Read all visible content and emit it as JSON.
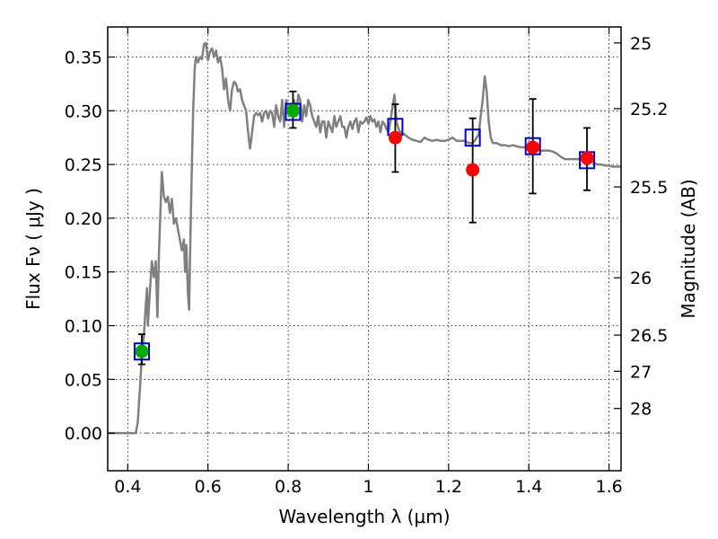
{
  "chart_data": {
    "type": "scatter",
    "title": "",
    "xlabel": "Wavelength  λ (μm)",
    "ylabel": "Flux  Fν  ( μJy )",
    "y2label": "Magnitude (AB)",
    "xlim": [
      0.35,
      1.63
    ],
    "ylim": [
      -0.035,
      0.378
    ],
    "grid": true,
    "x_ticks": [
      {
        "value": 0.4,
        "label": "0.4"
      },
      {
        "value": 0.6,
        "label": "0.6"
      },
      {
        "value": 0.8,
        "label": "0.8"
      },
      {
        "value": 1.0,
        "label": "1"
      },
      {
        "value": 1.2,
        "label": "1.2"
      },
      {
        "value": 1.4,
        "label": "1.4"
      },
      {
        "value": 1.6,
        "label": "1.6"
      }
    ],
    "y_ticks": [
      {
        "value": 0.0,
        "label": "0.00"
      },
      {
        "value": 0.05,
        "label": "0.05"
      },
      {
        "value": 0.1,
        "label": "0.10"
      },
      {
        "value": 0.15,
        "label": "0.15"
      },
      {
        "value": 0.2,
        "label": "0.20"
      },
      {
        "value": 0.25,
        "label": "0.25"
      },
      {
        "value": 0.3,
        "label": "0.30"
      },
      {
        "value": 0.35,
        "label": "0.35"
      }
    ],
    "y2_ticks": [
      {
        "value": 25.0,
        "label": "25"
      },
      {
        "value": 25.2,
        "label": "25.2"
      },
      {
        "value": 25.5,
        "label": "25.5"
      },
      {
        "value": 26.0,
        "label": "26"
      },
      {
        "value": 26.5,
        "label": "26.5"
      },
      {
        "value": 27.0,
        "label": "27"
      },
      {
        "value": 28.0,
        "label": "28"
      }
    ],
    "series": [
      {
        "kind": "line",
        "color": "#808080",
        "points": [
          [
            0.35,
            0.0
          ],
          [
            0.41,
            0.0
          ],
          [
            0.42,
            0.0
          ],
          [
            0.425,
            0.01
          ],
          [
            0.43,
            0.04
          ],
          [
            0.435,
            0.07
          ],
          [
            0.44,
            0.09
          ],
          [
            0.445,
            0.12
          ],
          [
            0.448,
            0.135
          ],
          [
            0.45,
            0.1
          ],
          [
            0.455,
            0.13
          ],
          [
            0.46,
            0.16
          ],
          [
            0.465,
            0.145
          ],
          [
            0.47,
            0.16
          ],
          [
            0.474,
            0.108
          ],
          [
            0.478,
            0.17
          ],
          [
            0.485,
            0.243
          ],
          [
            0.49,
            0.22
          ],
          [
            0.495,
            0.215
          ],
          [
            0.5,
            0.22
          ],
          [
            0.505,
            0.205
          ],
          [
            0.51,
            0.218
          ],
          [
            0.515,
            0.195
          ],
          [
            0.52,
            0.2
          ],
          [
            0.525,
            0.19
          ],
          [
            0.53,
            0.18
          ],
          [
            0.535,
            0.17
          ],
          [
            0.54,
            0.18
          ],
          [
            0.543,
            0.15
          ],
          [
            0.546,
            0.175
          ],
          [
            0.55,
            0.13
          ],
          [
            0.553,
            0.115
          ],
          [
            0.556,
            0.18
          ],
          [
            0.56,
            0.25
          ],
          [
            0.563,
            0.3
          ],
          [
            0.567,
            0.34
          ],
          [
            0.57,
            0.35
          ],
          [
            0.575,
            0.345
          ],
          [
            0.58,
            0.35
          ],
          [
            0.585,
            0.348
          ],
          [
            0.59,
            0.362
          ],
          [
            0.595,
            0.363
          ],
          [
            0.6,
            0.347
          ],
          [
            0.605,
            0.355
          ],
          [
            0.61,
            0.358
          ],
          [
            0.615,
            0.35
          ],
          [
            0.62,
            0.356
          ],
          [
            0.625,
            0.345
          ],
          [
            0.63,
            0.35
          ],
          [
            0.635,
            0.34
          ],
          [
            0.64,
            0.32
          ],
          [
            0.645,
            0.33
          ],
          [
            0.65,
            0.31
          ],
          [
            0.655,
            0.3
          ],
          [
            0.66,
            0.32
          ],
          [
            0.665,
            0.327
          ],
          [
            0.67,
            0.325
          ],
          [
            0.675,
            0.318
          ],
          [
            0.68,
            0.32
          ],
          [
            0.685,
            0.31
          ],
          [
            0.69,
            0.305
          ],
          [
            0.695,
            0.3
          ],
          [
            0.7,
            0.28
          ],
          [
            0.705,
            0.265
          ],
          [
            0.71,
            0.28
          ],
          [
            0.715,
            0.295
          ],
          [
            0.72,
            0.298
          ],
          [
            0.725,
            0.296
          ],
          [
            0.73,
            0.298
          ],
          [
            0.735,
            0.29
          ],
          [
            0.74,
            0.298
          ],
          [
            0.745,
            0.3
          ],
          [
            0.75,
            0.293
          ],
          [
            0.755,
            0.3
          ],
          [
            0.76,
            0.298
          ],
          [
            0.765,
            0.285
          ],
          [
            0.77,
            0.305
          ],
          [
            0.775,
            0.295
          ],
          [
            0.78,
            0.29
          ],
          [
            0.785,
            0.31
          ],
          [
            0.79,
            0.285
          ],
          [
            0.795,
            0.31
          ],
          [
            0.8,
            0.3
          ],
          [
            0.805,
            0.305
          ],
          [
            0.81,
            0.3
          ],
          [
            0.815,
            0.31
          ],
          [
            0.82,
            0.295
          ],
          [
            0.825,
            0.315
          ],
          [
            0.83,
            0.31
          ],
          [
            0.835,
            0.29
          ],
          [
            0.84,
            0.305
          ],
          [
            0.845,
            0.295
          ],
          [
            0.85,
            0.31
          ],
          [
            0.855,
            0.305
          ],
          [
            0.86,
            0.295
          ],
          [
            0.865,
            0.29
          ],
          [
            0.87,
            0.285
          ],
          [
            0.875,
            0.295
          ],
          [
            0.88,
            0.28
          ],
          [
            0.885,
            0.29
          ],
          [
            0.89,
            0.29
          ],
          [
            0.895,
            0.275
          ],
          [
            0.9,
            0.29
          ],
          [
            0.905,
            0.285
          ],
          [
            0.91,
            0.28
          ],
          [
            0.915,
            0.295
          ],
          [
            0.92,
            0.285
          ],
          [
            0.925,
            0.29
          ],
          [
            0.93,
            0.295
          ],
          [
            0.935,
            0.285
          ],
          [
            0.94,
            0.285
          ],
          [
            0.945,
            0.275
          ],
          [
            0.95,
            0.285
          ],
          [
            0.955,
            0.29
          ],
          [
            0.96,
            0.283
          ],
          [
            0.965,
            0.29
          ],
          [
            0.97,
            0.293
          ],
          [
            0.975,
            0.28
          ],
          [
            0.98,
            0.29
          ],
          [
            0.985,
            0.288
          ],
          [
            0.99,
            0.29
          ],
          [
            0.995,
            0.294
          ],
          [
            1.0,
            0.288
          ],
          [
            1.005,
            0.295
          ],
          [
            1.01,
            0.29
          ],
          [
            1.015,
            0.292
          ],
          [
            1.02,
            0.285
          ],
          [
            1.025,
            0.29
          ],
          [
            1.03,
            0.28
          ],
          [
            1.035,
            0.29
          ],
          [
            1.04,
            0.288
          ],
          [
            1.045,
            0.283
          ],
          [
            1.05,
            0.28
          ],
          [
            1.055,
            0.29
          ],
          [
            1.06,
            0.303
          ],
          [
            1.065,
            0.315
          ],
          [
            1.07,
            0.29
          ],
          [
            1.075,
            0.283
          ],
          [
            1.08,
            0.28
          ],
          [
            1.09,
            0.278
          ],
          [
            1.1,
            0.275
          ],
          [
            1.11,
            0.273
          ],
          [
            1.12,
            0.272
          ],
          [
            1.13,
            0.271
          ],
          [
            1.14,
            0.275
          ],
          [
            1.15,
            0.273
          ],
          [
            1.16,
            0.272
          ],
          [
            1.17,
            0.273
          ],
          [
            1.18,
            0.272
          ],
          [
            1.19,
            0.272
          ],
          [
            1.2,
            0.273
          ],
          [
            1.21,
            0.275
          ],
          [
            1.22,
            0.272
          ],
          [
            1.23,
            0.272
          ],
          [
            1.24,
            0.272
          ],
          [
            1.25,
            0.27
          ],
          [
            1.26,
            0.27
          ],
          [
            1.265,
            0.272
          ],
          [
            1.27,
            0.275
          ],
          [
            1.275,
            0.278
          ],
          [
            1.28,
            0.295
          ],
          [
            1.285,
            0.31
          ],
          [
            1.29,
            0.332
          ],
          [
            1.295,
            0.318
          ],
          [
            1.3,
            0.29
          ],
          [
            1.305,
            0.275
          ],
          [
            1.31,
            0.27
          ],
          [
            1.32,
            0.27
          ],
          [
            1.33,
            0.268
          ],
          [
            1.34,
            0.268
          ],
          [
            1.35,
            0.267
          ],
          [
            1.36,
            0.268
          ],
          [
            1.37,
            0.267
          ],
          [
            1.38,
            0.266
          ],
          [
            1.39,
            0.266
          ],
          [
            1.4,
            0.265
          ],
          [
            1.41,
            0.265
          ],
          [
            1.42,
            0.264
          ],
          [
            1.43,
            0.263
          ],
          [
            1.44,
            0.263
          ],
          [
            1.45,
            0.263
          ],
          [
            1.46,
            0.262
          ],
          [
            1.47,
            0.26
          ],
          [
            1.48,
            0.257
          ],
          [
            1.49,
            0.255
          ],
          [
            1.5,
            0.255
          ],
          [
            1.51,
            0.255
          ],
          [
            1.52,
            0.255
          ],
          [
            1.53,
            0.255
          ],
          [
            1.54,
            0.253
          ],
          [
            1.55,
            0.253
          ],
          [
            1.56,
            0.252
          ],
          [
            1.57,
            0.25
          ],
          [
            1.58,
            0.25
          ],
          [
            1.59,
            0.249
          ],
          [
            1.6,
            0.249
          ],
          [
            1.61,
            0.248
          ],
          [
            1.62,
            0.248
          ],
          [
            1.63,
            0.248
          ]
        ]
      },
      {
        "kind": "errorbar",
        "color": "#000000",
        "points": [
          {
            "x": 0.435,
            "ylo": 0.064,
            "yhi": 0.092
          },
          {
            "x": 0.812,
            "ylo": 0.284,
            "yhi": 0.318
          },
          {
            "x": 1.067,
            "ylo": 0.243,
            "yhi": 0.306
          },
          {
            "x": 1.26,
            "ylo": 0.196,
            "yhi": 0.293
          },
          {
            "x": 1.41,
            "ylo": 0.223,
            "yhi": 0.311
          },
          {
            "x": 1.545,
            "ylo": 0.226,
            "yhi": 0.284
          }
        ]
      },
      {
        "kind": "open-square",
        "color": "#0000cc",
        "points": [
          [
            0.435,
            0.076
          ],
          [
            0.812,
            0.299
          ],
          [
            1.067,
            0.285
          ],
          [
            1.26,
            0.275
          ],
          [
            1.41,
            0.267
          ],
          [
            1.545,
            0.254
          ]
        ]
      },
      {
        "kind": "filled-circle",
        "color": "#00aa00",
        "points": [
          [
            0.435,
            0.076
          ],
          [
            0.812,
            0.3
          ]
        ]
      },
      {
        "kind": "filled-circle",
        "color": "#ff0000",
        "points": [
          [
            1.067,
            0.275
          ],
          [
            1.26,
            0.245
          ],
          [
            1.41,
            0.266
          ],
          [
            1.545,
            0.256
          ]
        ]
      }
    ]
  }
}
